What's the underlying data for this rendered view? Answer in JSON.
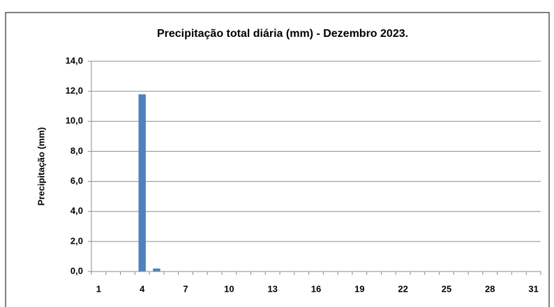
{
  "chart_data": {
    "type": "bar",
    "title": "Precipitação total diária (mm) - Dezembro 2023.",
    "y_label": "Precipitação (mm)",
    "categories": [
      "1",
      null,
      null,
      "4",
      null,
      null,
      "7",
      null,
      null,
      "10",
      null,
      null,
      "13",
      null,
      null,
      "16",
      null,
      null,
      "19",
      null,
      null,
      "22",
      null,
      null,
      "25",
      null,
      null,
      "28",
      null,
      null,
      "31"
    ],
    "values": [
      0,
      0,
      0,
      11.8,
      0.2,
      0,
      0,
      0,
      0,
      0,
      0,
      0,
      0,
      0,
      0,
      0,
      0,
      0,
      0,
      0,
      0,
      0,
      0,
      0,
      0,
      0,
      0,
      0,
      0,
      0,
      0
    ],
    "color": "#4f81bd",
    "ylim": [
      0,
      14
    ],
    "yticks": [
      {
        "value": 0,
        "label": "0,0"
      },
      {
        "value": 2,
        "label": "2,0"
      },
      {
        "value": 4,
        "label": "4,0"
      },
      {
        "value": 6,
        "label": "6,0"
      },
      {
        "value": 8,
        "label": "8,0"
      },
      {
        "value": 10,
        "label": "10,0"
      },
      {
        "value": 12,
        "label": "12,0"
      },
      {
        "value": 14,
        "label": "14,0"
      }
    ],
    "grid": true
  }
}
